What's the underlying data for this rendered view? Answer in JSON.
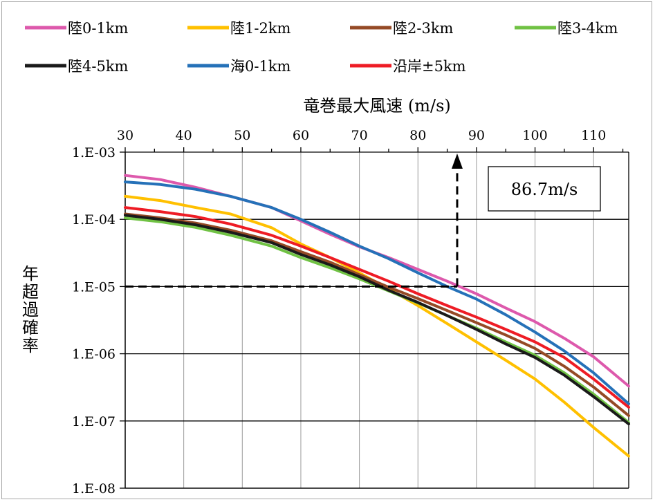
{
  "chart_data": {
    "type": "line",
    "title": "",
    "xlabel": "竜巻最大風速 (m/s)",
    "ylabel": "年超過確率",
    "x_axis_position": "top",
    "y_scale": "log",
    "xlim": [
      30,
      116
    ],
    "ylim": [
      1e-08,
      0.001
    ],
    "x_ticks": [
      30,
      40,
      50,
      60,
      70,
      80,
      90,
      100,
      110
    ],
    "x_tick_labels": [
      "30",
      "40",
      "50",
      "60",
      "70",
      "80",
      "90",
      "100",
      "110"
    ],
    "y_ticks": [
      0.001,
      0.0001,
      1e-05,
      1e-06,
      1e-07,
      1e-08
    ],
    "y_tick_labels": [
      "1.E-03",
      "1.E-04",
      "1.E-05",
      "1.E-06",
      "1.E-07",
      "1.E-08"
    ],
    "grid": true,
    "legend_position": "top",
    "series": [
      {
        "name": "陸0-1km",
        "color": "#dd59ac",
        "x": [
          30,
          36,
          42,
          48,
          55,
          60,
          65,
          70,
          75,
          80,
          85,
          90,
          95,
          100,
          105,
          110,
          116
        ],
        "y": [
          0.00045,
          0.00039,
          0.0003,
          0.00022,
          0.00015,
          9.5e-05,
          6e-05,
          3.9e-05,
          2.7e-05,
          1.8e-05,
          1.2e-05,
          7.8e-06,
          4.8e-06,
          3e-06,
          1.7e-06,
          9e-07,
          3.3e-07
        ]
      },
      {
        "name": "陸1-2km",
        "color": "#ffc000",
        "x": [
          30,
          36,
          42,
          48,
          55,
          60,
          65,
          70,
          75,
          80,
          85,
          90,
          95,
          100,
          105,
          110,
          116
        ],
        "y": [
          0.00022,
          0.00019,
          0.00015,
          0.00012,
          7.5e-05,
          4.3e-05,
          2.7e-05,
          1.6e-05,
          9.2e-06,
          5.2e-06,
          2.8e-06,
          1.5e-06,
          8e-07,
          4.2e-07,
          1.9e-07,
          8e-08,
          3e-08
        ]
      },
      {
        "name": "陸2-3km",
        "color": "#954a26",
        "x": [
          30,
          36,
          42,
          48,
          55,
          60,
          65,
          70,
          75,
          80,
          85,
          90,
          95,
          100,
          105,
          110,
          116
        ],
        "y": [
          0.00012,
          0.000105,
          8.8e-05,
          6.9e-05,
          4.8e-05,
          3.3e-05,
          2.3e-05,
          1.5e-05,
          9.8e-06,
          6.6e-06,
          4.4e-06,
          2.9e-06,
          1.9e-06,
          1.2e-06,
          6.5e-07,
          3.2e-07,
          1.2e-07
        ]
      },
      {
        "name": "陸3-4km",
        "color": "#70c244",
        "x": [
          30,
          36,
          42,
          48,
          55,
          60,
          65,
          70,
          75,
          80,
          85,
          90,
          95,
          100,
          105,
          110,
          116
        ],
        "y": [
          0.000105,
          9.2e-05,
          7.6e-05,
          5.8e-05,
          4e-05,
          2.7e-05,
          1.9e-05,
          1.3e-05,
          8.6e-06,
          5.7e-06,
          3.7e-06,
          2.4e-06,
          1.5e-06,
          9.5e-07,
          5.2e-07,
          2.5e-07,
          9.5e-08
        ]
      },
      {
        "name": "陸4-5km",
        "color": "#1a1a1a",
        "x": [
          30,
          36,
          42,
          48,
          55,
          60,
          65,
          70,
          75,
          80,
          85,
          90,
          95,
          100,
          105,
          110,
          116
        ],
        "y": [
          0.000115,
          0.0001,
          8.3e-05,
          6.4e-05,
          4.5e-05,
          3e-05,
          2.1e-05,
          1.4e-05,
          8.8e-06,
          5.8e-06,
          3.7e-06,
          2.3e-06,
          1.4e-06,
          8.8e-07,
          4.8e-07,
          2.3e-07,
          9e-08
        ]
      },
      {
        "name": "海0-1km",
        "color": "#2571b8",
        "x": [
          30,
          36,
          42,
          48,
          55,
          60,
          65,
          70,
          75,
          80,
          85,
          90,
          95,
          100,
          105,
          110,
          116
        ],
        "y": [
          0.00036,
          0.00033,
          0.00028,
          0.00022,
          0.00015,
          0.0001,
          6.4e-05,
          4e-05,
          2.6e-05,
          1.6e-05,
          1e-05,
          6.5e-06,
          3.8e-06,
          2.1e-06,
          1.1e-06,
          5.2e-07,
          1.8e-07
        ]
      },
      {
        "name": "沿岸±5km",
        "color": "#ee1c25",
        "x": [
          30,
          36,
          42,
          48,
          55,
          60,
          65,
          70,
          75,
          80,
          85,
          90,
          95,
          100,
          105,
          110,
          116
        ],
        "y": [
          0.00015,
          0.00013,
          0.00011,
          8.5e-05,
          5.8e-05,
          4e-05,
          2.7e-05,
          1.8e-05,
          1.2e-05,
          7.8e-06,
          5.2e-06,
          3.5e-06,
          2.3e-06,
          1.5e-06,
          8.8e-07,
          4.2e-07,
          1.6e-07
        ]
      }
    ],
    "annotation": {
      "label": "86.7m/s",
      "x": 86.7,
      "y": 1e-05
    }
  }
}
